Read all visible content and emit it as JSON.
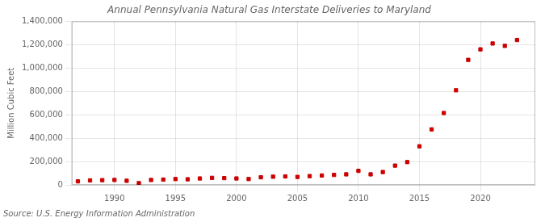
{
  "chart_data": {
    "type": "scatter",
    "title": "Annual Pennsylvania Natural Gas Interstate Deliveries to Maryland",
    "ylabel": "Million Cubic Feet",
    "source": "Source: U.S. Energy Information Administration",
    "x": [
      1987,
      1988,
      1989,
      1990,
      1991,
      1992,
      1993,
      1994,
      1995,
      1996,
      1997,
      1998,
      1999,
      2000,
      2001,
      2002,
      2003,
      2004,
      2005,
      2006,
      2007,
      2008,
      2009,
      2010,
      2011,
      2012,
      2013,
      2014,
      2015,
      2016,
      2017,
      2018,
      2019,
      2020,
      2021,
      2022,
      2023
    ],
    "values": [
      30000,
      38000,
      40000,
      42000,
      35000,
      15000,
      42000,
      45000,
      50000,
      48000,
      55000,
      60000,
      58000,
      55000,
      50000,
      65000,
      70000,
      72000,
      68000,
      75000,
      80000,
      85000,
      90000,
      120000,
      90000,
      110000,
      165000,
      195000,
      330000,
      475000,
      615000,
      810000,
      1070000,
      1160000,
      1210000,
      1190000,
      1240000
    ],
    "color": "#cc0000",
    "marker": "square",
    "xlim": [
      1986.5,
      2024.5
    ],
    "xticks": [
      1990,
      1995,
      2000,
      2005,
      2010,
      2015,
      2020
    ],
    "ylim": [
      0,
      1400000
    ],
    "yticks": [
      0,
      {
        "value": 200000,
        "label": "200,000"
      },
      {
        "value": 400000,
        "label": "400,000"
      },
      {
        "value": 600000,
        "label": "600,000"
      },
      {
        "value": 800000,
        "label": "800,000"
      },
      {
        "value": 1000000,
        "label": "1,000,000"
      },
      {
        "value": 1200000,
        "label": "1,200,000"
      },
      {
        "value": 1400000,
        "label": "1,400,000"
      }
    ],
    "grid": true
  }
}
